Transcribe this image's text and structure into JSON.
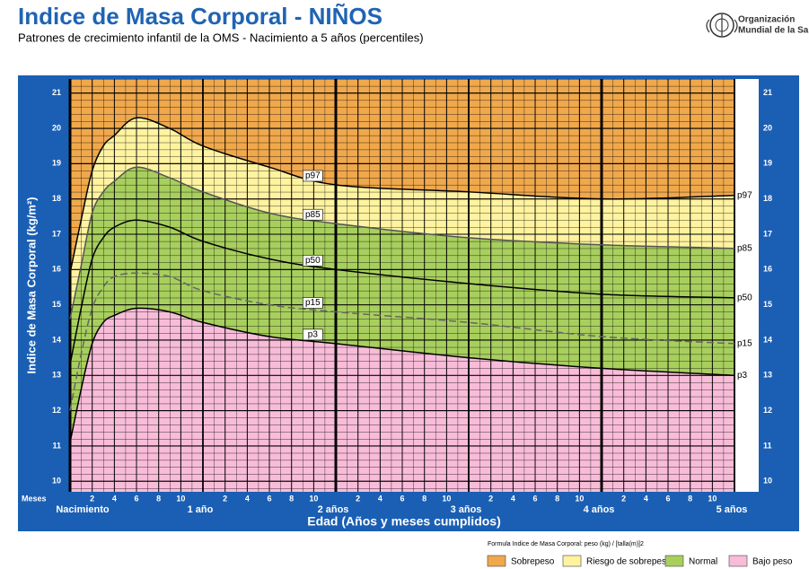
{
  "header": {
    "org": [
      "Organización",
      "Mundial de la Salud"
    ]
  },
  "chart_data": {
    "type": "line",
    "title": "Indice de Masa Corporal - NIÑOS",
    "subtitle": "Patrones de crecimiento infantil de la OMS - Nacimiento a 5 años (percentiles)",
    "y_label": "Indice de Masa Corporal  (kg/m²)",
    "x_label": "Edad (Años y meses cumplidos)",
    "month_axis_label": "Meses",
    "formula": "Formula Indice de Masa Corporal: peso (kg) / [talla(m)]2",
    "x": [
      0,
      1,
      2,
      3,
      4,
      6,
      9,
      12,
      18,
      24,
      36,
      48,
      60
    ],
    "xlim": [
      0,
      60
    ],
    "ylim": [
      9.7,
      21.4
    ],
    "yticks": [
      10,
      11,
      12,
      13,
      14,
      15,
      16,
      17,
      18,
      19,
      20,
      21
    ],
    "xticks": [
      {
        "value": 0,
        "label": "Nacimiento"
      },
      {
        "value": 12,
        "label": "1 año"
      },
      {
        "value": 24,
        "label": "2 años"
      },
      {
        "value": 36,
        "label": "3 años"
      },
      {
        "value": 48,
        "label": "4 años"
      },
      {
        "value": 60,
        "label": "5 años"
      }
    ],
    "month_ticks": [
      {
        "value": 2,
        "label": "2"
      },
      {
        "value": 4,
        "label": "4"
      },
      {
        "value": 6,
        "label": "6"
      },
      {
        "value": 8,
        "label": "8"
      },
      {
        "value": 10,
        "label": "10"
      },
      {
        "value": 14,
        "label": "2"
      },
      {
        "value": 16,
        "label": "4"
      },
      {
        "value": 18,
        "label": "6"
      },
      {
        "value": 20,
        "label": "8"
      },
      {
        "value": 22,
        "label": "10"
      },
      {
        "value": 26,
        "label": "2"
      },
      {
        "value": 28,
        "label": "4"
      },
      {
        "value": 30,
        "label": "6"
      },
      {
        "value": 32,
        "label": "8"
      },
      {
        "value": 34,
        "label": "10"
      },
      {
        "value": 38,
        "label": "2"
      },
      {
        "value": 40,
        "label": "4"
      },
      {
        "value": 42,
        "label": "6"
      },
      {
        "value": 44,
        "label": "8"
      },
      {
        "value": 46,
        "label": "10"
      },
      {
        "value": 50,
        "label": "2"
      },
      {
        "value": 52,
        "label": "4"
      },
      {
        "value": 54,
        "label": "6"
      },
      {
        "value": 56,
        "label": "8"
      },
      {
        "value": 58,
        "label": "10"
      }
    ],
    "grid": true,
    "series": [
      {
        "name": "p3",
        "color": "#000000",
        "values": [
          11.1,
          12.6,
          13.9,
          14.5,
          14.7,
          14.9,
          14.8,
          14.5,
          14.1,
          13.9,
          13.5,
          13.2,
          13.0
        ]
      },
      {
        "name": "p15",
        "color": "#666666",
        "dash": true,
        "values": [
          12.0,
          13.6,
          14.9,
          15.5,
          15.8,
          15.9,
          15.8,
          15.4,
          15.0,
          14.8,
          14.5,
          14.1,
          13.9
        ]
      },
      {
        "name": "p50",
        "color": "#000000",
        "values": [
          13.3,
          14.9,
          16.3,
          16.9,
          17.2,
          17.4,
          17.2,
          16.8,
          16.3,
          16.0,
          15.6,
          15.3,
          15.2
        ]
      },
      {
        "name": "p85",
        "color": "#555555",
        "values": [
          14.6,
          16.1,
          17.6,
          18.2,
          18.5,
          18.9,
          18.6,
          18.2,
          17.6,
          17.3,
          16.9,
          16.7,
          16.6
        ]
      },
      {
        "name": "p97",
        "color": "#000000",
        "values": [
          15.9,
          17.4,
          18.8,
          19.5,
          19.8,
          20.3,
          20.0,
          19.5,
          18.9,
          18.4,
          18.2,
          18.0,
          18.1
        ]
      }
    ],
    "bands": [
      {
        "name": "Sobrepeso",
        "color": "#f0a84c",
        "from": "p97"
      },
      {
        "name": "Riesgo de sobrepeso",
        "color": "#fff3a0",
        "from": "p85",
        "to": "p97"
      },
      {
        "name": "Normal",
        "color": "#a8cf5e",
        "from": "p3",
        "to": "p85"
      },
      {
        "name": "Bajo peso",
        "color": "#f8bcd9",
        "to": "p3"
      }
    ]
  }
}
